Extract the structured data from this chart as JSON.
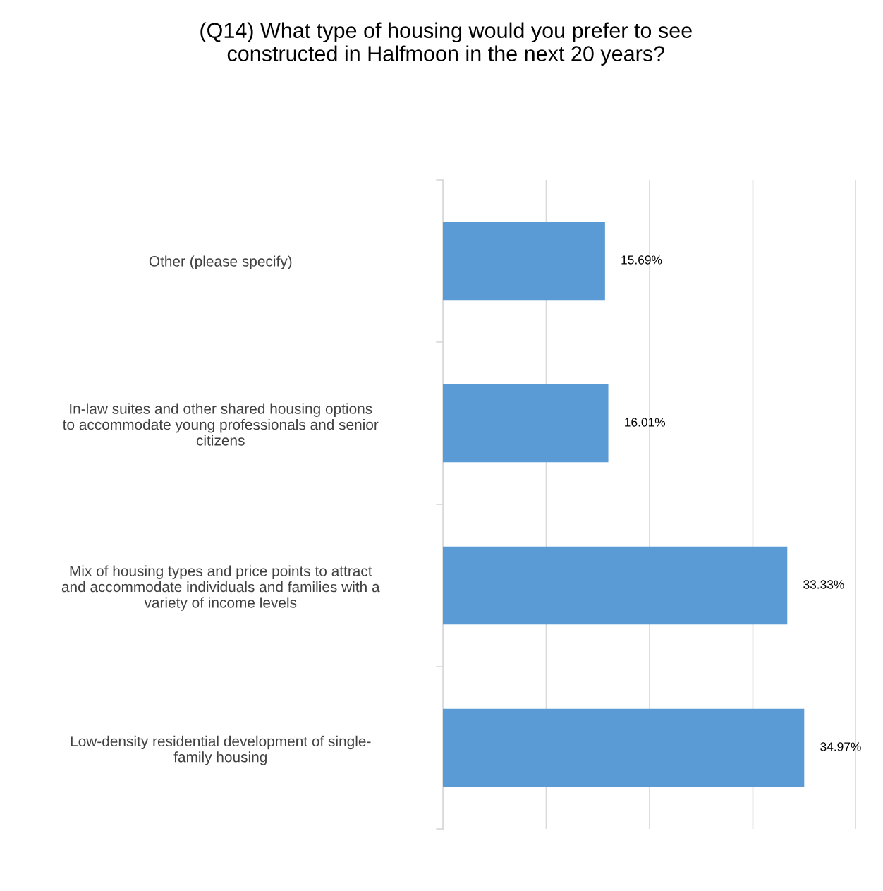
{
  "chart_data": {
    "type": "bar",
    "orientation": "horizontal",
    "title": "(Q14) What type of housing would you prefer to see\nconstructed in Halfmoon in the next 20 years?",
    "categories": [
      "Other (please specify)",
      "In-law suites and other shared housing options\nto accommodate young professionals and senior\ncitizens",
      "Mix of housing types and price points to attract\nand accommodate individuals and families with a\nvariety of income levels",
      "Low-density residential development of single-\nfamily housing"
    ],
    "values": [
      15.69,
      16.01,
      33.33,
      34.97
    ],
    "value_labels": [
      "15.69%",
      "16.01%",
      "33.33%",
      "34.97%"
    ],
    "color": "#5b9bd5",
    "xlim": [
      0,
      40
    ],
    "xticks": [
      {
        "value": 0,
        "label": null
      },
      {
        "value": 10,
        "label": null
      },
      {
        "value": 20,
        "label": null
      },
      {
        "value": 30,
        "label": null
      },
      {
        "value": 40,
        "label": null
      }
    ],
    "grid": "x",
    "tick_labels": "y"
  }
}
